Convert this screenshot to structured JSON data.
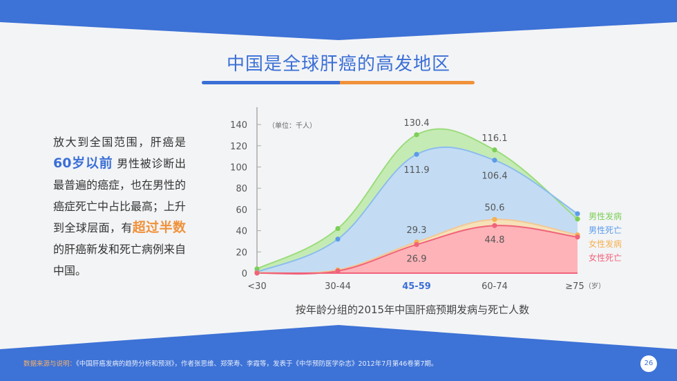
{
  "page": {
    "title": "中国是全球肝癌的高发地区",
    "page_number": "26"
  },
  "description": {
    "part1": "放大到全国范围，肝癌是",
    "highlight1": "60岁以前",
    "part2": " 男性被诊断出最普遍的癌症，也在男性的癌症死亡中占比最高；上升到全球层面，有",
    "highlight2": "超过半数",
    "part3": " 的肝癌新发和死亡病例来自中国。"
  },
  "footer": {
    "source_label": "数据来源与说明：",
    "source_text": "《中国肝癌发病的趋势分析和预测》，作者张思维、郑荣寿、李霞等，发表于《中华预防医学杂志》2012年7月第46卷第7期。"
  },
  "chart_data": {
    "type": "area",
    "title": "按年龄分组的2015年中国肝癌预期发病与死亡人数",
    "unit_label": "（单位：千人）",
    "x_unit_label": "（岁）",
    "categories": [
      "<30",
      "30-44",
      "45-59",
      "60-74",
      "≥75"
    ],
    "highlight_category": "45-59",
    "ylim": [
      0,
      140
    ],
    "yticks": [
      0,
      20,
      40,
      60,
      80,
      100,
      120,
      140
    ],
    "legend_position": "right",
    "series": [
      {
        "name": "男性发病",
        "color": "#7ccf57",
        "values": [
          4,
          42,
          130.4,
          116.1,
          51
        ],
        "label_index": [
          2,
          3
        ]
      },
      {
        "name": "男性死亡",
        "color": "#5b9bea",
        "values": [
          1,
          32,
          111.9,
          106.4,
          56
        ],
        "label_index": [
          2,
          3
        ]
      },
      {
        "name": "女性发病",
        "color": "#f6b04f",
        "values": [
          0.5,
          3,
          29.3,
          50.6,
          36
        ],
        "label_index": [
          2,
          3
        ]
      },
      {
        "name": "女性死亡",
        "color": "#f0637a",
        "values": [
          0,
          2,
          26.9,
          44.8,
          34
        ],
        "label_index": [
          2,
          3
        ]
      }
    ]
  }
}
